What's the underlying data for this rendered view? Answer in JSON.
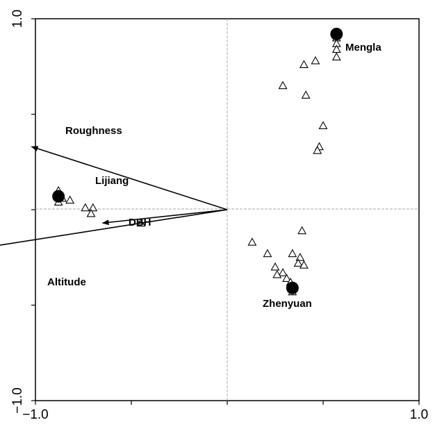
{
  "chart_data": {
    "type": "scatter",
    "title": "",
    "xlabel": "",
    "ylabel": "",
    "xlim": [
      -1.0,
      1.0
    ],
    "ylim": [
      -1.0,
      1.0
    ],
    "grid": false,
    "reference_lines": [
      0,
      0
    ],
    "tick_labels": {
      "x_min": "−1.0",
      "x_max": "1.0",
      "y_min": "−1.0",
      "y_max": "1.0"
    },
    "environmental_vectors": [
      {
        "name": "Roughness",
        "x": -1.02,
        "y": 0.33
      },
      {
        "name": "DBH",
        "x": -0.65,
        "y": -0.07
      },
      {
        "name": "Altitude",
        "x": -1.85,
        "y": -0.29
      }
    ],
    "site_centroids": [
      {
        "name": "Mengla",
        "x": 0.57,
        "y": 0.92
      },
      {
        "name": "Lijiang",
        "x": -0.88,
        "y": 0.07
      },
      {
        "name": "Zhenyuan",
        "x": 0.34,
        "y": -0.41
      }
    ],
    "samples": {
      "marker": "triangle",
      "points": [
        {
          "x": 0.57,
          "y": 0.9
        },
        {
          "x": 0.57,
          "y": 0.87
        },
        {
          "x": 0.57,
          "y": 0.84
        },
        {
          "x": 0.57,
          "y": 0.8
        },
        {
          "x": 0.46,
          "y": 0.78
        },
        {
          "x": 0.4,
          "y": 0.76
        },
        {
          "x": 0.29,
          "y": 0.65
        },
        {
          "x": 0.41,
          "y": 0.6
        },
        {
          "x": 0.5,
          "y": 0.44
        },
        {
          "x": 0.48,
          "y": 0.33
        },
        {
          "x": 0.47,
          "y": 0.31
        },
        {
          "x": -0.88,
          "y": 0.1
        },
        {
          "x": -0.87,
          "y": 0.08
        },
        {
          "x": -0.86,
          "y": 0.06
        },
        {
          "x": -0.82,
          "y": 0.05
        },
        {
          "x": -0.88,
          "y": 0.04
        },
        {
          "x": -0.74,
          "y": 0.01
        },
        {
          "x": -0.7,
          "y": 0.01
        },
        {
          "x": -0.71,
          "y": -0.02
        },
        {
          "x": -0.45,
          "y": -0.07
        },
        {
          "x": 0.13,
          "y": -0.17
        },
        {
          "x": 0.21,
          "y": -0.23
        },
        {
          "x": 0.39,
          "y": -0.11
        },
        {
          "x": 0.34,
          "y": -0.23
        },
        {
          "x": 0.38,
          "y": -0.25
        },
        {
          "x": 0.37,
          "y": -0.28
        },
        {
          "x": 0.4,
          "y": -0.29
        },
        {
          "x": 0.25,
          "y": -0.3
        },
        {
          "x": 0.29,
          "y": -0.33
        },
        {
          "x": 0.26,
          "y": -0.34
        },
        {
          "x": 0.31,
          "y": -0.36
        },
        {
          "x": 0.33,
          "y": -0.38
        },
        {
          "x": 0.34,
          "y": -0.41
        },
        {
          "x": 0.34,
          "y": -0.43
        }
      ]
    }
  }
}
